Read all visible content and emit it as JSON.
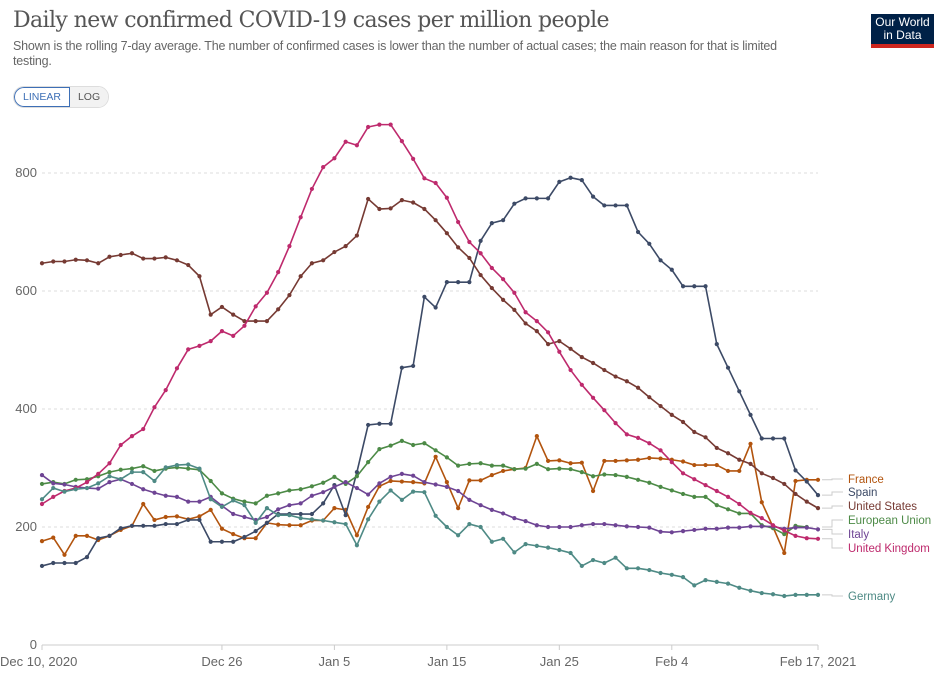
{
  "header": {
    "title": "Daily new confirmed COVID-19 cases per million people",
    "subtitle": "Shown is the rolling 7-day average. The number of confirmed cases is lower than the number of actual cases; the main reason for that is limited testing.",
    "logo_line1": "Our World",
    "logo_line2": "in Data"
  },
  "controls": {
    "linear_label": "LINEAR",
    "log_label": "LOG",
    "selected": "LINEAR"
  },
  "chart_data": {
    "type": "line",
    "title": "Daily new confirmed COVID-19 cases per million people",
    "xlabel": "",
    "ylabel": "",
    "x_start": "2020-12-10",
    "x_end": "2021-02-17",
    "num_days": 70,
    "ylim": [
      0,
      900
    ],
    "yticks": [
      0,
      200,
      400,
      600,
      800
    ],
    "ytick_labels": [
      "0",
      "200",
      "400",
      "600",
      "800"
    ],
    "xticks": [
      {
        "day": 0,
        "label": "Dec 10, 2020"
      },
      {
        "day": 16,
        "label": "Dec 26"
      },
      {
        "day": 26,
        "label": "Jan 5"
      },
      {
        "day": 36,
        "label": "Jan 15"
      },
      {
        "day": 46,
        "label": "Jan 25"
      },
      {
        "day": 56,
        "label": "Feb 4"
      },
      {
        "day": 69,
        "label": "Feb 17, 2021"
      }
    ],
    "grid": true,
    "legend_placement": "right (end-of-line labels)",
    "series": [
      {
        "name": "France",
        "color": "#b2540e",
        "values": [
          176,
          182,
          153,
          185,
          185,
          178,
          185,
          195,
          202,
          239,
          212,
          217,
          218,
          213,
          218,
          229,
          197,
          188,
          181,
          181,
          207,
          204,
          203,
          203,
          211,
          211,
          232,
          229,
          186,
          234,
          269,
          278,
          277,
          276,
          274,
          319,
          276,
          232,
          279,
          279,
          288,
          295,
          298,
          300,
          354,
          312,
          313,
          308,
          309,
          261,
          312,
          312,
          313,
          314,
          317,
          316,
          314,
          311,
          305,
          305,
          305,
          295,
          295,
          341,
          242,
          200,
          156,
          278,
          280,
          280
        ]
      },
      {
        "name": "Spain",
        "color": "#3c4a66",
        "values": [
          134,
          139,
          139,
          139,
          149,
          181,
          185,
          198,
          202,
          202,
          202,
          205,
          205,
          212,
          212,
          175,
          175,
          175,
          183,
          193,
          207,
          222,
          222,
          222,
          222,
          240,
          271,
          220,
          293,
          373,
          375,
          375,
          470,
          473,
          590,
          572,
          615,
          615,
          615,
          685,
          715,
          720,
          748,
          757,
          757,
          757,
          785,
          792,
          788,
          760,
          745,
          745,
          745,
          700,
          680,
          652,
          636,
          608,
          608,
          608,
          510,
          470,
          430,
          390,
          350,
          350,
          350,
          296,
          277,
          254
        ]
      },
      {
        "name": "United States",
        "color": "#763a33",
        "values": [
          647,
          650,
          650,
          653,
          652,
          647,
          658,
          661,
          664,
          655,
          655,
          657,
          652,
          644,
          625,
          560,
          573,
          560,
          549,
          549,
          549,
          569,
          593,
          625,
          647,
          652,
          666,
          676,
          694,
          756,
          739,
          740,
          754,
          750,
          739,
          720,
          698,
          674,
          656,
          627,
          605,
          585,
          568,
          545,
          532,
          510,
          515,
          502,
          488,
          478,
          466,
          455,
          447,
          436,
          420,
          405,
          390,
          378,
          361,
          352,
          334,
          325,
          314,
          307,
          291,
          283,
          273,
          256,
          243,
          232
        ]
      },
      {
        "name": "European Union",
        "color": "#4c8a46",
        "values": [
          273,
          276,
          273,
          280,
          281,
          286,
          293,
          297,
          299,
          303,
          295,
          299,
          301,
          299,
          297,
          278,
          257,
          248,
          243,
          240,
          253,
          257,
          262,
          264,
          269,
          275,
          285,
          273,
          286,
          310,
          332,
          338,
          346,
          339,
          342,
          330,
          318,
          304,
          307,
          308,
          304,
          304,
          298,
          299,
          307,
          298,
          299,
          298,
          293,
          286,
          289,
          288,
          285,
          280,
          275,
          268,
          262,
          256,
          251,
          251,
          237,
          230,
          223,
          223,
          203,
          198,
          188,
          202,
          200,
          null
        ]
      },
      {
        "name": "Italy",
        "color": "#6e4494",
        "values": [
          288,
          274,
          272,
          268,
          266,
          265,
          276,
          281,
          273,
          264,
          258,
          253,
          251,
          243,
          243,
          251,
          236,
          222,
          217,
          212,
          217,
          230,
          237,
          240,
          253,
          259,
          268,
          276,
          266,
          255,
          274,
          285,
          290,
          287,
          276,
          272,
          268,
          261,
          246,
          237,
          229,
          223,
          215,
          210,
          203,
          200,
          200,
          200,
          203,
          205,
          205,
          203,
          201,
          200,
          199,
          192,
          191,
          193,
          195,
          197,
          197,
          199,
          199,
          201,
          201,
          201,
          197,
          199,
          199,
          196
        ]
      },
      {
        "name": "United Kingdom",
        "color": "#be2a6d",
        "values": [
          239,
          251,
          261,
          266,
          276,
          290,
          308,
          339,
          354,
          366,
          403,
          432,
          469,
          501,
          507,
          515,
          532,
          524,
          541,
          574,
          597,
          632,
          676,
          725,
          773,
          810,
          825,
          853,
          847,
          878,
          882,
          882,
          854,
          824,
          791,
          783,
          758,
          717,
          683,
          664,
          639,
          620,
          597,
          564,
          549,
          530,
          497,
          466,
          441,
          419,
          398,
          376,
          357,
          351,
          342,
          330,
          310,
          291,
          281,
          271,
          261,
          251,
          239,
          224,
          215,
          203,
          194,
          185,
          181,
          180
        ]
      },
      {
        "name": "Germany",
        "color": "#4e8a85",
        "values": [
          247,
          266,
          260,
          264,
          266,
          274,
          286,
          281,
          293,
          293,
          278,
          301,
          305,
          306,
          299,
          247,
          234,
          245,
          237,
          207,
          232,
          220,
          220,
          215,
          213,
          211,
          208,
          205,
          169,
          213,
          243,
          262,
          246,
          260,
          259,
          219,
          200,
          186,
          205,
          200,
          175,
          180,
          157,
          171,
          168,
          165,
          161,
          156,
          134,
          144,
          139,
          148,
          130,
          130,
          127,
          122,
          119,
          115,
          101,
          110,
          107,
          104,
          97,
          92,
          88,
          86,
          83,
          85,
          85,
          85
        ]
      }
    ]
  }
}
